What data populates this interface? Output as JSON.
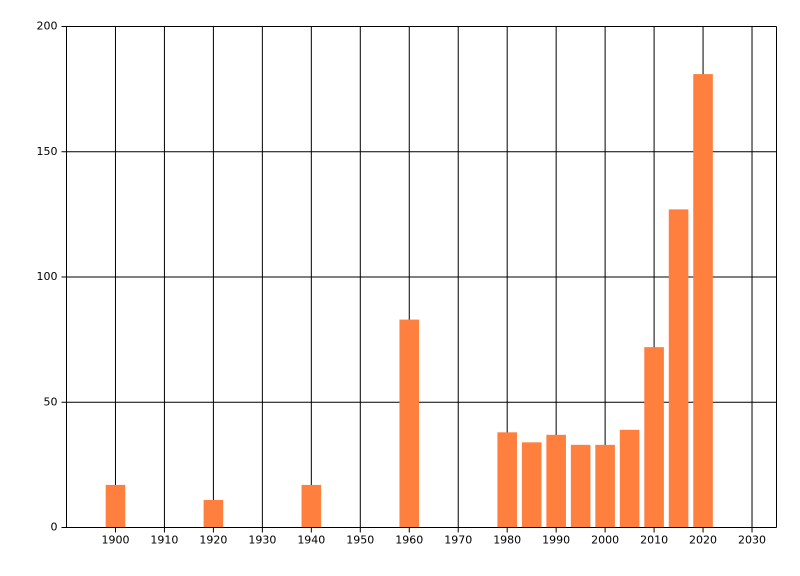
{
  "chart_data": {
    "type": "bar",
    "x": [
      1900,
      1920,
      1940,
      1960,
      1980,
      1985,
      1990,
      1995,
      2000,
      2005,
      2010,
      2015,
      2020
    ],
    "values": [
      17,
      11,
      17,
      83,
      38,
      34,
      37,
      33,
      33,
      39,
      72,
      127,
      181
    ],
    "color": "#ff7f3f",
    "xlim": [
      1890,
      2035
    ],
    "xticks": [
      1900,
      1910,
      1920,
      1930,
      1940,
      1950,
      1960,
      1970,
      1980,
      1990,
      2000,
      2010,
      2020,
      2030
    ],
    "ylim": [
      0,
      200
    ],
    "yticks": [
      0,
      50,
      100,
      150,
      200
    ],
    "grid": true
  }
}
